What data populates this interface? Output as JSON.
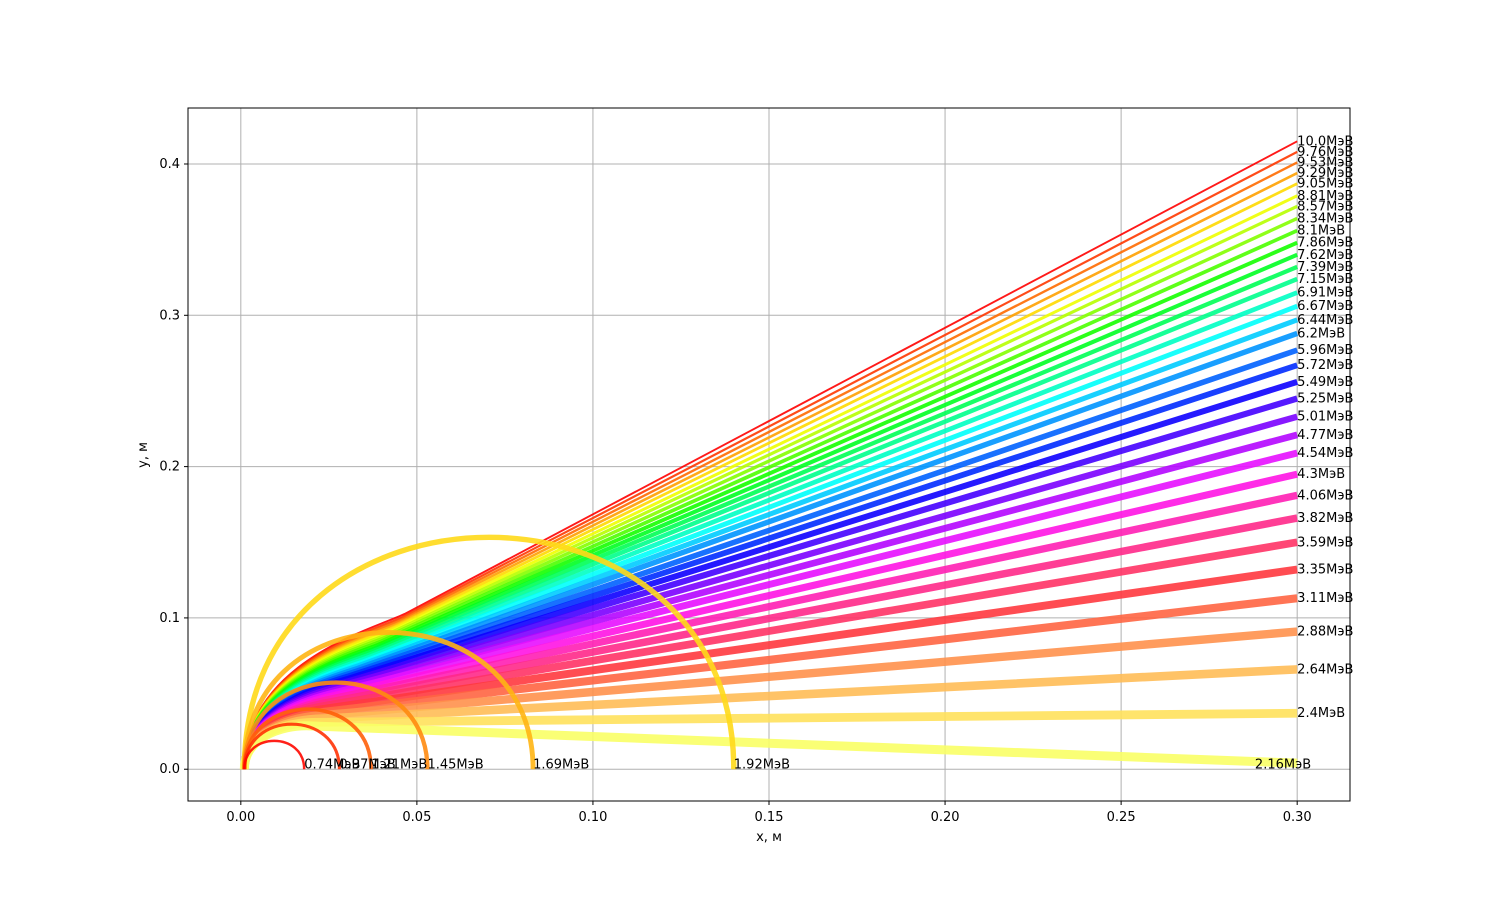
{
  "chart_data": {
    "type": "line",
    "title": "",
    "xlabel": "x, м",
    "ylabel": "y, м",
    "xlim": [
      -0.015,
      0.315
    ],
    "ylim": [
      -0.021,
      0.437
    ],
    "grid": true,
    "xticks": [
      "0.00",
      "0.05",
      "0.10",
      "0.15",
      "0.20",
      "0.25",
      "0.30"
    ],
    "yticks": [
      "0.0",
      "0.1",
      "0.2",
      "0.3",
      "0.4"
    ],
    "trajectory_start": [
      0.001,
      0.0
    ],
    "trajectory_end_x": 0.3,
    "colors": {
      "red": "#ff1010",
      "orange": "#ff9a1a",
      "yellow": "#f5f520",
      "green": "#2cf52c",
      "cyan": "#1ef5f5",
      "blue": "#1a1aff",
      "violet": "#9a10f5",
      "magenta": "#ff10e0"
    },
    "series": [
      {
        "label": "0.74МэВ",
        "energy": 0.74,
        "label_x": 0.018,
        "label_y": 0.003,
        "end_x": 0.018,
        "end_y": 0.0
      },
      {
        "label": "0.97МэВ",
        "energy": 0.97,
        "label_x": 0.028,
        "label_y": 0.003,
        "end_x": 0.028,
        "end_y": 0.0
      },
      {
        "label": "1.21МэВ",
        "energy": 1.21,
        "label_x": 0.037,
        "label_y": 0.003,
        "end_x": 0.037,
        "end_y": 0.0
      },
      {
        "label": "1.45МэВ",
        "energy": 1.45,
        "label_x": 0.053,
        "label_y": 0.003,
        "end_x": 0.053,
        "end_y": 0.0
      },
      {
        "label": "1.69МэВ",
        "energy": 1.69,
        "label_x": 0.083,
        "label_y": 0.003,
        "end_x": 0.083,
        "end_y": 0.0
      },
      {
        "label": "1.92МэВ",
        "energy": 1.92,
        "label_x": 0.14,
        "label_y": 0.003,
        "end_x": 0.14,
        "end_y": 0.0
      },
      {
        "label": "2.16МэВ",
        "energy": 2.16,
        "label_x": 0.288,
        "label_y": 0.003,
        "end_x": 0.3,
        "end_y": 0.004
      },
      {
        "label": "2.4МэВ",
        "energy": 2.4,
        "label_x": 0.3,
        "label_y": 0.037,
        "end_x": 0.3,
        "end_y": 0.037
      },
      {
        "label": "2.64МэВ",
        "energy": 2.64,
        "label_x": 0.3,
        "label_y": 0.066,
        "end_x": 0.3,
        "end_y": 0.066
      },
      {
        "label": "2.88МэВ",
        "energy": 2.88,
        "label_x": 0.3,
        "label_y": 0.091,
        "end_x": 0.3,
        "end_y": 0.091
      },
      {
        "label": "3.11МэВ",
        "energy": 3.11,
        "label_x": 0.3,
        "label_y": 0.113,
        "end_x": 0.3,
        "end_y": 0.113
      },
      {
        "label": "3.35МэВ",
        "energy": 3.35,
        "label_x": 0.3,
        "label_y": 0.132,
        "end_x": 0.3,
        "end_y": 0.132
      },
      {
        "label": "3.59МэВ",
        "energy": 3.59,
        "label_x": 0.3,
        "label_y": 0.15,
        "end_x": 0.3,
        "end_y": 0.15
      },
      {
        "label": "3.82МэВ",
        "energy": 3.82,
        "label_x": 0.3,
        "label_y": 0.166,
        "end_x": 0.3,
        "end_y": 0.166
      },
      {
        "label": "4.06МэВ",
        "energy": 4.06,
        "label_x": 0.3,
        "label_y": 0.181,
        "end_x": 0.3,
        "end_y": 0.181
      },
      {
        "label": "4.3МэВ",
        "energy": 4.3,
        "label_x": 0.3,
        "label_y": 0.195,
        "end_x": 0.3,
        "end_y": 0.195
      },
      {
        "label": "4.54МэВ",
        "energy": 4.54,
        "label_x": 0.3,
        "label_y": 0.209,
        "end_x": 0.3,
        "end_y": 0.209
      },
      {
        "label": "4.77МэВ",
        "energy": 4.77,
        "label_x": 0.3,
        "label_y": 0.221,
        "end_x": 0.3,
        "end_y": 0.221
      },
      {
        "label": "5.01МэВ",
        "energy": 5.01,
        "label_x": 0.3,
        "label_y": 0.233,
        "end_x": 0.3,
        "end_y": 0.233
      },
      {
        "label": "5.25МэВ",
        "energy": 5.25,
        "label_x": 0.3,
        "label_y": 0.245,
        "end_x": 0.3,
        "end_y": 0.245
      },
      {
        "label": "5.49МэВ",
        "energy": 5.49,
        "label_x": 0.3,
        "label_y": 0.256,
        "end_x": 0.3,
        "end_y": 0.256
      },
      {
        "label": "5.72МэВ",
        "energy": 5.72,
        "label_x": 0.3,
        "label_y": 0.267,
        "end_x": 0.3,
        "end_y": 0.267
      },
      {
        "label": "5.96МэВ",
        "energy": 5.96,
        "label_x": 0.3,
        "label_y": 0.277,
        "end_x": 0.3,
        "end_y": 0.277
      },
      {
        "label": "6.2МэВ",
        "energy": 6.2,
        "label_x": 0.3,
        "label_y": 0.288,
        "end_x": 0.3,
        "end_y": 0.288
      },
      {
        "label": "6.44МэВ",
        "energy": 6.44,
        "label_x": 0.3,
        "label_y": 0.297,
        "end_x": 0.3,
        "end_y": 0.297
      },
      {
        "label": "6.67МэВ",
        "energy": 6.67,
        "label_x": 0.3,
        "label_y": 0.306,
        "end_x": 0.3,
        "end_y": 0.306
      },
      {
        "label": "6.91МэВ",
        "energy": 6.91,
        "label_x": 0.3,
        "label_y": 0.315,
        "end_x": 0.3,
        "end_y": 0.315
      },
      {
        "label": "7.15МэВ",
        "energy": 7.15,
        "label_x": 0.3,
        "label_y": 0.324,
        "end_x": 0.3,
        "end_y": 0.324
      },
      {
        "label": "7.39МэВ",
        "energy": 7.39,
        "label_x": 0.3,
        "label_y": 0.332,
        "end_x": 0.3,
        "end_y": 0.332
      },
      {
        "label": "7.62МэВ",
        "energy": 7.62,
        "label_x": 0.3,
        "label_y": 0.34,
        "end_x": 0.3,
        "end_y": 0.34
      },
      {
        "label": "7.86МэВ",
        "energy": 7.86,
        "label_x": 0.3,
        "label_y": 0.348,
        "end_x": 0.3,
        "end_y": 0.348
      },
      {
        "label": "8.1МэВ",
        "energy": 8.1,
        "label_x": 0.3,
        "label_y": 0.356,
        "end_x": 0.3,
        "end_y": 0.356
      },
      {
        "label": "8.34МэВ",
        "energy": 8.34,
        "label_x": 0.3,
        "label_y": 0.364,
        "end_x": 0.3,
        "end_y": 0.364
      },
      {
        "label": "8.57МэВ",
        "energy": 8.57,
        "label_x": 0.3,
        "label_y": 0.372,
        "end_x": 0.3,
        "end_y": 0.372
      },
      {
        "label": "8.81МэВ",
        "energy": 8.81,
        "label_x": 0.3,
        "label_y": 0.379,
        "end_x": 0.3,
        "end_y": 0.379
      },
      {
        "label": "9.05МэВ",
        "energy": 9.05,
        "label_x": 0.3,
        "label_y": 0.387,
        "end_x": 0.3,
        "end_y": 0.387
      },
      {
        "label": "9.29МэВ",
        "energy": 9.29,
        "label_x": 0.3,
        "label_y": 0.394,
        "end_x": 0.3,
        "end_y": 0.394
      },
      {
        "label": "9.53МэВ",
        "energy": 9.53,
        "label_x": 0.3,
        "label_y": 0.401,
        "end_x": 0.3,
        "end_y": 0.401
      },
      {
        "label": "9.76МэВ",
        "energy": 9.76,
        "label_x": 0.3,
        "label_y": 0.408,
        "end_x": 0.3,
        "end_y": 0.408
      },
      {
        "label": "10.0МэВ",
        "energy": 10.0,
        "label_x": 0.3,
        "label_y": 0.415,
        "end_x": 0.3,
        "end_y": 0.415
      }
    ]
  }
}
